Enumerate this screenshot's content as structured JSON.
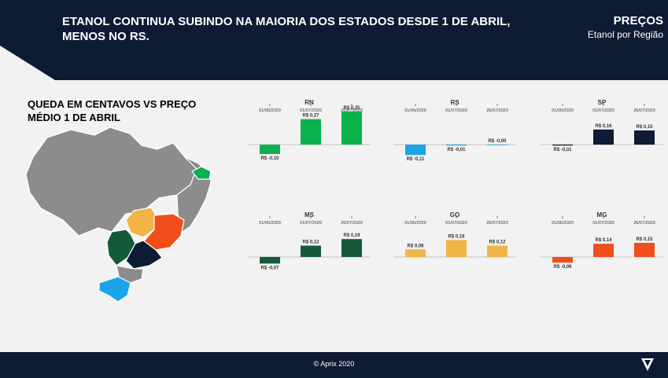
{
  "header": {
    "headline": "ETANOL CONTINUA SUBINDO NA MAIORIA DOS ESTADOS DESDE 1 DE ABRIL, MENOS NO RS.",
    "section": "PREÇOS",
    "section_sub": "Etanol por Região"
  },
  "subtitle": "QUEDA EM CENTAVOS VS PREÇO MÉDIO 1 DE ABRIL",
  "footer": {
    "copyright": "© Aprix 2020"
  },
  "colors": {
    "navy": "#0d1b33",
    "RN": "#0bb04f",
    "RS": "#1aa4e8",
    "SP": "#0d1b33",
    "MS": "#145a38",
    "GO": "#f0b447",
    "MG": "#f04e1a",
    "map_gray": "#8c8c8c"
  },
  "chart_data": [
    {
      "type": "bar",
      "title": "RN",
      "categories": [
        "01/06/2020",
        "01/07/2020",
        "26/07/2020"
      ],
      "values": [
        -0.1,
        0.27,
        0.35
      ],
      "labels": [
        "R$ -0,10",
        "R$ 0,27",
        "R$ 0,35"
      ],
      "color": "#0bb04f"
    },
    {
      "type": "bar",
      "title": "RS",
      "categories": [
        "01/06/2020",
        "01/07/2020",
        "26/07/2020"
      ],
      "values": [
        -0.11,
        -0.01,
        -0.0
      ],
      "labels": [
        "R$ -0,11",
        "R$ -0,01",
        "R$ -0,00"
      ],
      "color": "#1aa4e8"
    },
    {
      "type": "bar",
      "title": "SP",
      "categories": [
        "01/06/2020",
        "01/07/2020",
        "26/07/2020"
      ],
      "values": [
        -0.01,
        0.16,
        0.15
      ],
      "labels": [
        "R$ -0,01",
        "R$ 0,16",
        "R$ 0,15"
      ],
      "color": "#0d1b33"
    },
    {
      "type": "bar",
      "title": "MS",
      "categories": [
        "01/06/2020",
        "01/07/2020",
        "26/07/2020"
      ],
      "values": [
        -0.07,
        0.12,
        0.19
      ],
      "labels": [
        "R$ -0,07",
        "R$ 0,12",
        "R$ 0,19"
      ],
      "color": "#145a38"
    },
    {
      "type": "bar",
      "title": "GO",
      "categories": [
        "01/06/2020",
        "01/07/2020",
        "26/07/2020"
      ],
      "values": [
        0.08,
        0.18,
        0.12
      ],
      "labels": [
        "R$ 0,08",
        "R$ 0,18",
        "R$ 0,12"
      ],
      "color": "#f0b447"
    },
    {
      "type": "bar",
      "title": "MG",
      "categories": [
        "01/06/2020",
        "01/07/2020",
        "26/07/2020"
      ],
      "values": [
        -0.06,
        0.14,
        0.15
      ],
      "labels": [
        "R$ -0,06",
        "R$ 0,14",
        "R$ 0,15"
      ],
      "color": "#f04e1a"
    }
  ]
}
